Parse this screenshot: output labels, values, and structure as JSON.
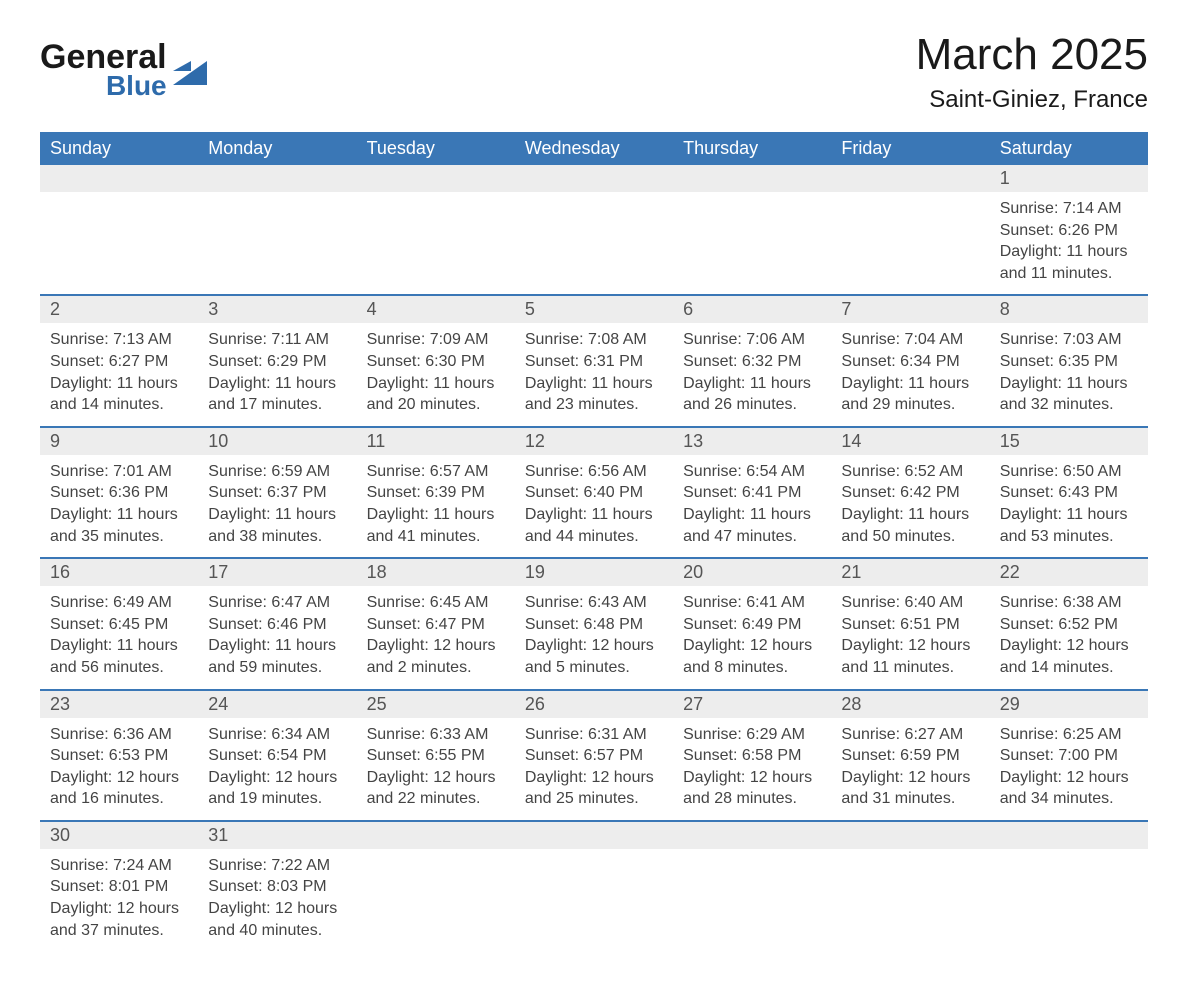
{
  "logo": {
    "word1": "General",
    "word2": "Blue"
  },
  "title": "March 2025",
  "location": "Saint-Giniez, France",
  "colors": {
    "header_bg": "#3a77b6",
    "header_text": "#ffffff",
    "daynum_bg": "#ededed",
    "row_divider": "#3a77b6",
    "logo_accent": "#2e6bab"
  },
  "weekdays": [
    "Sunday",
    "Monday",
    "Tuesday",
    "Wednesday",
    "Thursday",
    "Friday",
    "Saturday"
  ],
  "weeks": [
    [
      null,
      null,
      null,
      null,
      null,
      null,
      {
        "n": "1",
        "sr": "Sunrise: 7:14 AM",
        "ss": "Sunset: 6:26 PM",
        "dl": "Daylight: 11 hours and 11 minutes."
      }
    ],
    [
      {
        "n": "2",
        "sr": "Sunrise: 7:13 AM",
        "ss": "Sunset: 6:27 PM",
        "dl": "Daylight: 11 hours and 14 minutes."
      },
      {
        "n": "3",
        "sr": "Sunrise: 7:11 AM",
        "ss": "Sunset: 6:29 PM",
        "dl": "Daylight: 11 hours and 17 minutes."
      },
      {
        "n": "4",
        "sr": "Sunrise: 7:09 AM",
        "ss": "Sunset: 6:30 PM",
        "dl": "Daylight: 11 hours and 20 minutes."
      },
      {
        "n": "5",
        "sr": "Sunrise: 7:08 AM",
        "ss": "Sunset: 6:31 PM",
        "dl": "Daylight: 11 hours and 23 minutes."
      },
      {
        "n": "6",
        "sr": "Sunrise: 7:06 AM",
        "ss": "Sunset: 6:32 PM",
        "dl": "Daylight: 11 hours and 26 minutes."
      },
      {
        "n": "7",
        "sr": "Sunrise: 7:04 AM",
        "ss": "Sunset: 6:34 PM",
        "dl": "Daylight: 11 hours and 29 minutes."
      },
      {
        "n": "8",
        "sr": "Sunrise: 7:03 AM",
        "ss": "Sunset: 6:35 PM",
        "dl": "Daylight: 11 hours and 32 minutes."
      }
    ],
    [
      {
        "n": "9",
        "sr": "Sunrise: 7:01 AM",
        "ss": "Sunset: 6:36 PM",
        "dl": "Daylight: 11 hours and 35 minutes."
      },
      {
        "n": "10",
        "sr": "Sunrise: 6:59 AM",
        "ss": "Sunset: 6:37 PM",
        "dl": "Daylight: 11 hours and 38 minutes."
      },
      {
        "n": "11",
        "sr": "Sunrise: 6:57 AM",
        "ss": "Sunset: 6:39 PM",
        "dl": "Daylight: 11 hours and 41 minutes."
      },
      {
        "n": "12",
        "sr": "Sunrise: 6:56 AM",
        "ss": "Sunset: 6:40 PM",
        "dl": "Daylight: 11 hours and 44 minutes."
      },
      {
        "n": "13",
        "sr": "Sunrise: 6:54 AM",
        "ss": "Sunset: 6:41 PM",
        "dl": "Daylight: 11 hours and 47 minutes."
      },
      {
        "n": "14",
        "sr": "Sunrise: 6:52 AM",
        "ss": "Sunset: 6:42 PM",
        "dl": "Daylight: 11 hours and 50 minutes."
      },
      {
        "n": "15",
        "sr": "Sunrise: 6:50 AM",
        "ss": "Sunset: 6:43 PM",
        "dl": "Daylight: 11 hours and 53 minutes."
      }
    ],
    [
      {
        "n": "16",
        "sr": "Sunrise: 6:49 AM",
        "ss": "Sunset: 6:45 PM",
        "dl": "Daylight: 11 hours and 56 minutes."
      },
      {
        "n": "17",
        "sr": "Sunrise: 6:47 AM",
        "ss": "Sunset: 6:46 PM",
        "dl": "Daylight: 11 hours and 59 minutes."
      },
      {
        "n": "18",
        "sr": "Sunrise: 6:45 AM",
        "ss": "Sunset: 6:47 PM",
        "dl": "Daylight: 12 hours and 2 minutes."
      },
      {
        "n": "19",
        "sr": "Sunrise: 6:43 AM",
        "ss": "Sunset: 6:48 PM",
        "dl": "Daylight: 12 hours and 5 minutes."
      },
      {
        "n": "20",
        "sr": "Sunrise: 6:41 AM",
        "ss": "Sunset: 6:49 PM",
        "dl": "Daylight: 12 hours and 8 minutes."
      },
      {
        "n": "21",
        "sr": "Sunrise: 6:40 AM",
        "ss": "Sunset: 6:51 PM",
        "dl": "Daylight: 12 hours and 11 minutes."
      },
      {
        "n": "22",
        "sr": "Sunrise: 6:38 AM",
        "ss": "Sunset: 6:52 PM",
        "dl": "Daylight: 12 hours and 14 minutes."
      }
    ],
    [
      {
        "n": "23",
        "sr": "Sunrise: 6:36 AM",
        "ss": "Sunset: 6:53 PM",
        "dl": "Daylight: 12 hours and 16 minutes."
      },
      {
        "n": "24",
        "sr": "Sunrise: 6:34 AM",
        "ss": "Sunset: 6:54 PM",
        "dl": "Daylight: 12 hours and 19 minutes."
      },
      {
        "n": "25",
        "sr": "Sunrise: 6:33 AM",
        "ss": "Sunset: 6:55 PM",
        "dl": "Daylight: 12 hours and 22 minutes."
      },
      {
        "n": "26",
        "sr": "Sunrise: 6:31 AM",
        "ss": "Sunset: 6:57 PM",
        "dl": "Daylight: 12 hours and 25 minutes."
      },
      {
        "n": "27",
        "sr": "Sunrise: 6:29 AM",
        "ss": "Sunset: 6:58 PM",
        "dl": "Daylight: 12 hours and 28 minutes."
      },
      {
        "n": "28",
        "sr": "Sunrise: 6:27 AM",
        "ss": "Sunset: 6:59 PM",
        "dl": "Daylight: 12 hours and 31 minutes."
      },
      {
        "n": "29",
        "sr": "Sunrise: 6:25 AM",
        "ss": "Sunset: 7:00 PM",
        "dl": "Daylight: 12 hours and 34 minutes."
      }
    ],
    [
      {
        "n": "30",
        "sr": "Sunrise: 7:24 AM",
        "ss": "Sunset: 8:01 PM",
        "dl": "Daylight: 12 hours and 37 minutes."
      },
      {
        "n": "31",
        "sr": "Sunrise: 7:22 AM",
        "ss": "Sunset: 8:03 PM",
        "dl": "Daylight: 12 hours and 40 minutes."
      },
      null,
      null,
      null,
      null,
      null
    ]
  ]
}
